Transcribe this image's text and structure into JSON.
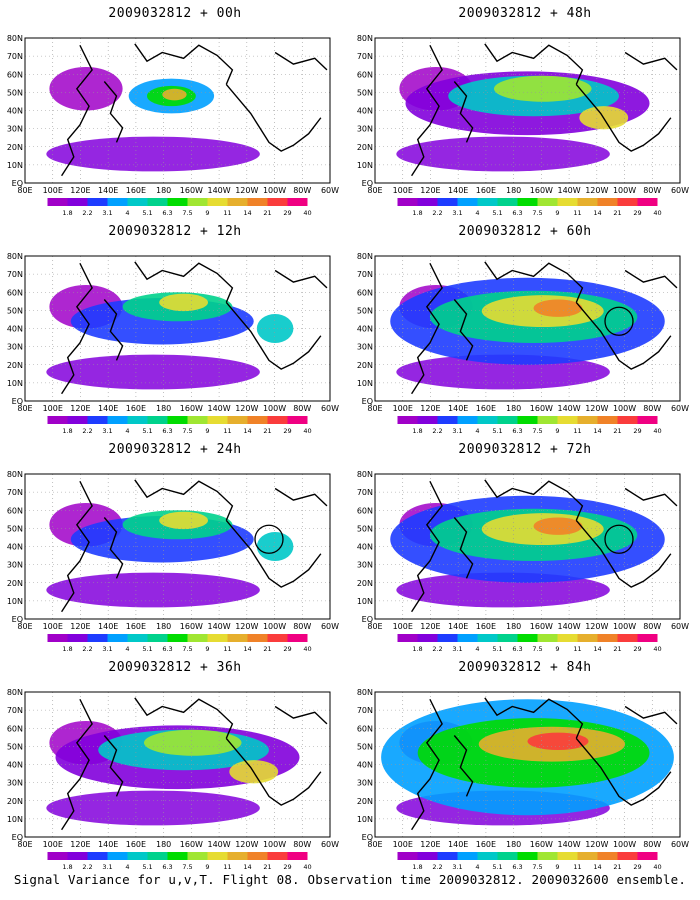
{
  "caption": "Signal Variance for u,v,T. Flight 08. Observation time 2009032812. 2009032600 ensemble.",
  "lat_labels": [
    "80N",
    "70N",
    "60N",
    "50N",
    "40N",
    "30N",
    "20N",
    "10N",
    "EQ"
  ],
  "lon_labels": [
    "80E",
    "100E",
    "120E",
    "140E",
    "160E",
    "180",
    "160W",
    "140W",
    "120W",
    "100W",
    "80W",
    "60W"
  ],
  "colorbar_values": [
    "1.8",
    "2.2",
    "3.1",
    "4",
    "5.1",
    "6.3",
    "7.5",
    "9",
    "11",
    "14",
    "21",
    "29",
    "40"
  ],
  "colorbar_colors": [
    "#a000c8",
    "#8200dc",
    "#1e3cff",
    "#00a0ff",
    "#00c8c8",
    "#00d28c",
    "#00dc00",
    "#a0e632",
    "#e6dc32",
    "#e6af2d",
    "#f08228",
    "#fa3c3c",
    "#f00082"
  ],
  "panels": [
    {
      "title": "2009032812 + 00h",
      "circle": false,
      "level": 0
    },
    {
      "title": "2009032812 + 48h",
      "circle": false,
      "level": 2
    },
    {
      "title": "2009032812 + 12h",
      "circle": false,
      "level": 1
    },
    {
      "title": "2009032812 + 60h",
      "circle": true,
      "level": 3
    },
    {
      "title": "2009032812 + 24h",
      "circle": true,
      "level": 1
    },
    {
      "title": "2009032812 + 72h",
      "circle": true,
      "level": 3
    },
    {
      "title": "2009032812 + 36h",
      "circle": false,
      "level": 2
    },
    {
      "title": "2009032812 + 84h",
      "circle": false,
      "level": 4
    }
  ]
}
